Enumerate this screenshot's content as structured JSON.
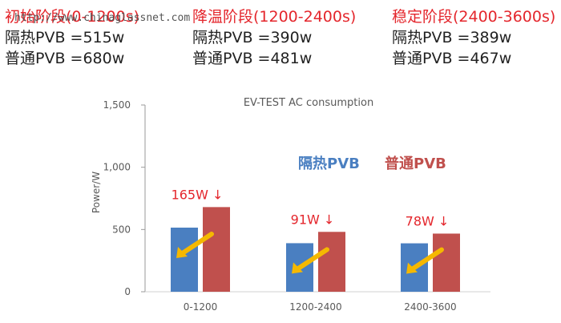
{
  "watermark": "http://www.chinaglassnet.com",
  "phases": [
    {
      "title": "初始阶段(0-1200s)",
      "insulated": "隔热PVB =515w",
      "normal": "普通PVB =680w"
    },
    {
      "title": "降温阶段(1200-2400s)",
      "insulated": "隔热PVB =390w",
      "normal": "普通PVB =481w"
    },
    {
      "title": "稳定阶段(2400-3600s)",
      "insulated": "隔热PVB =389w",
      "normal": "普通PVB =467w"
    }
  ],
  "colors": {
    "insulated": "#4a7fc1",
    "normal": "#c0504d",
    "arrow": "#f5b800",
    "annotation": "#e4262c"
  },
  "chart_data": {
    "type": "bar",
    "title": "EV-TEST AC consumption",
    "ylabel": "Power/W",
    "xlabel": "",
    "categories": [
      "0-1200",
      "1200-2400",
      "2400-3600"
    ],
    "series": [
      {
        "name": "隔热PVB",
        "values": [
          515,
          390,
          389
        ]
      },
      {
        "name": "普通PVB",
        "values": [
          680,
          481,
          467
        ]
      }
    ],
    "ylim": [
      0,
      1500
    ],
    "yticks": [
      "0",
      "500",
      "1,000",
      "1,500"
    ],
    "annotations": [
      "165W ↓",
      "91W ↓",
      "78W ↓"
    ],
    "grid": false,
    "legend_position": "inside-right"
  }
}
